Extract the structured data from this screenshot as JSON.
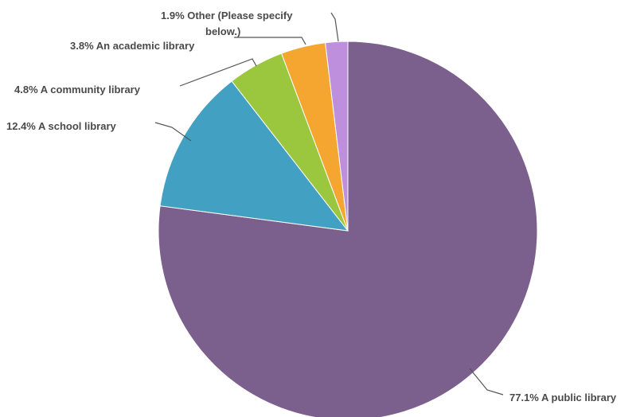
{
  "chart_data": {
    "type": "pie",
    "slices": [
      {
        "label": "A public library",
        "value": 77.1,
        "color": "#7b5f8c"
      },
      {
        "label": "A school library",
        "value": 12.4,
        "color": "#42a1c2"
      },
      {
        "label": "A community library",
        "value": 4.8,
        "color": "#9ac73e"
      },
      {
        "label": "An academic library",
        "value": 3.8,
        "color": "#f4a631"
      },
      {
        "label": "Other (Please specify below.)",
        "value": 1.9,
        "color": "#bd8fdd"
      }
    ],
    "labels": {
      "public": "77.1% A public library",
      "school": "12.4% A school library",
      "community": "4.8% A community library",
      "academic": "3.8% An academic library",
      "other_line1": "1.9% Other (Please specify",
      "other_line2": "below.)"
    },
    "start_angle": "12 o'clock",
    "direction": "clockwise"
  }
}
